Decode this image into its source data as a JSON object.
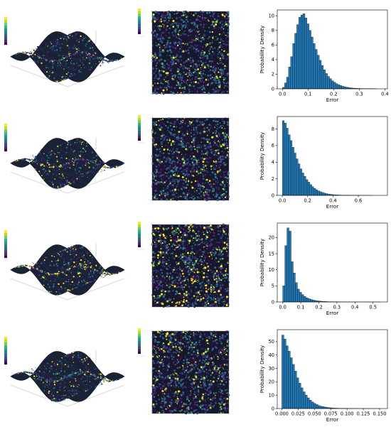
{
  "colors": {
    "viridis": [
      "#440154",
      "#482878",
      "#3e4989",
      "#31688e",
      "#26828e",
      "#1f9e89",
      "#35b779",
      "#6ece58",
      "#b5de2b",
      "#fde725"
    ],
    "bar_fill": "#1f77b4",
    "bar_edge": "#000000"
  },
  "chart_data": [
    {
      "type": "bar",
      "xlabel": "Error",
      "ylabel": "Probability Density",
      "xlim": [
        -0.02,
        0.41
      ],
      "ylim": [
        0,
        10.8
      ],
      "xticks": [
        "0.0",
        "0.1",
        "0.2",
        "0.3",
        "0.4"
      ],
      "xtick_values": [
        0.0,
        0.1,
        0.2,
        0.3,
        0.4
      ],
      "yticks": [
        "0",
        "2",
        "4",
        "6",
        "8",
        "10"
      ],
      "ytick_values": [
        0,
        2,
        4,
        6,
        8,
        10
      ],
      "bin_start": 0.0,
      "bin_width": 0.008,
      "values": [
        0.2,
        0.8,
        1.6,
        3.0,
        4.4,
        6.2,
        7.6,
        8.8,
        9.8,
        10.1,
        10.3,
        9.7,
        8.9,
        8.0,
        7.1,
        6.2,
        5.4,
        4.6,
        3.9,
        3.2,
        2.6,
        2.1,
        1.7,
        1.4,
        1.1,
        0.9,
        0.7,
        0.55,
        0.45,
        0.35,
        0.28,
        0.22,
        0.17,
        0.13,
        0.1,
        0.08,
        0.06,
        0.05,
        0.04,
        0.03,
        0.03,
        0.02,
        0.02,
        0.02,
        0.01,
        0.01
      ]
    },
    {
      "type": "bar",
      "xlabel": "Error",
      "ylabel": "Probability Density",
      "xlim": [
        -0.04,
        0.83
      ],
      "ylim": [
        0,
        9.5
      ],
      "xticks": [
        "0.0",
        "0.2",
        "0.4",
        "0.6"
      ],
      "xtick_values": [
        0.0,
        0.2,
        0.4,
        0.6
      ],
      "yticks": [
        "0",
        "2",
        "4",
        "6",
        "8"
      ],
      "ytick_values": [
        0,
        2,
        4,
        6,
        8
      ],
      "bin_start": 0.0,
      "bin_width": 0.0155,
      "values": [
        9.0,
        8.7,
        8.1,
        7.3,
        6.6,
        5.8,
        5.1,
        4.4,
        3.8,
        3.2,
        2.7,
        2.3,
        1.9,
        1.6,
        1.3,
        1.05,
        0.85,
        0.68,
        0.55,
        0.44,
        0.35,
        0.28,
        0.22,
        0.17,
        0.13,
        0.1,
        0.08,
        0.06,
        0.05,
        0.04,
        0.03,
        0.025,
        0.02,
        0.015,
        0.012,
        0.01,
        0.008,
        0.006,
        0.005,
        0.004,
        0.003,
        0.003,
        0.002,
        0.002,
        0.001,
        0.001
      ]
    },
    {
      "type": "bar",
      "xlabel": "Error",
      "ylabel": "Probability Density",
      "xlim": [
        -0.03,
        0.58
      ],
      "ylim": [
        0,
        24.5
      ],
      "xticks": [
        "0.0",
        "0.1",
        "0.2",
        "0.3",
        "0.4",
        "0.5"
      ],
      "xtick_values": [
        0.0,
        0.1,
        0.2,
        0.3,
        0.4,
        0.5
      ],
      "yticks": [
        "0",
        "5",
        "10",
        "15",
        "20"
      ],
      "ytick_values": [
        0,
        5,
        10,
        15,
        20
      ],
      "bin_start": 0.0,
      "bin_width": 0.0117,
      "values": [
        5.0,
        17.5,
        23.0,
        22.0,
        12.5,
        9.0,
        6.0,
        4.0,
        3.0,
        2.3,
        1.7,
        1.3,
        1.0,
        0.8,
        0.6,
        0.45,
        0.35,
        0.28,
        0.22,
        0.17,
        0.13,
        0.1,
        0.08,
        0.06,
        0.05,
        0.04,
        0.03,
        0.025,
        0.02,
        0.015,
        0.012,
        0.01,
        0.008,
        0.006,
        0.005,
        0.004,
        0.003,
        0.002,
        0.002,
        0.001,
        0.001,
        0.001,
        0.001,
        0.001,
        0.001,
        0.001
      ]
    },
    {
      "type": "bar",
      "xlabel": "Error",
      "ylabel": "Probability Density",
      "xlim": [
        -0.007,
        0.162
      ],
      "ylim": [
        0,
        59
      ],
      "xticks": [
        "0.000",
        "0.025",
        "0.050",
        "0.075",
        "0.100",
        "0.125",
        "0.150"
      ],
      "xtick_values": [
        0.0,
        0.025,
        0.05,
        0.075,
        0.1,
        0.125,
        0.15
      ],
      "yticks": [
        "0",
        "10",
        "20",
        "30",
        "40",
        "50"
      ],
      "ytick_values": [
        0,
        10,
        20,
        30,
        40,
        50
      ],
      "bin_start": 0.0,
      "bin_width": 0.00325,
      "values": [
        55.0,
        52.0,
        47.0,
        43.0,
        38.0,
        33.0,
        28.0,
        23.0,
        19.0,
        15.5,
        12.5,
        10.0,
        8.0,
        6.3,
        5.0,
        3.9,
        3.0,
        2.3,
        1.8,
        1.4,
        1.1,
        0.85,
        0.65,
        0.5,
        0.4,
        0.3,
        0.23,
        0.18,
        0.14,
        0.1,
        0.08,
        0.06,
        0.05,
        0.04,
        0.03,
        0.02,
        0.02,
        0.015,
        0.01,
        0.01,
        0.008,
        0.006,
        0.005,
        0.004,
        0.003,
        0.002
      ]
    }
  ]
}
